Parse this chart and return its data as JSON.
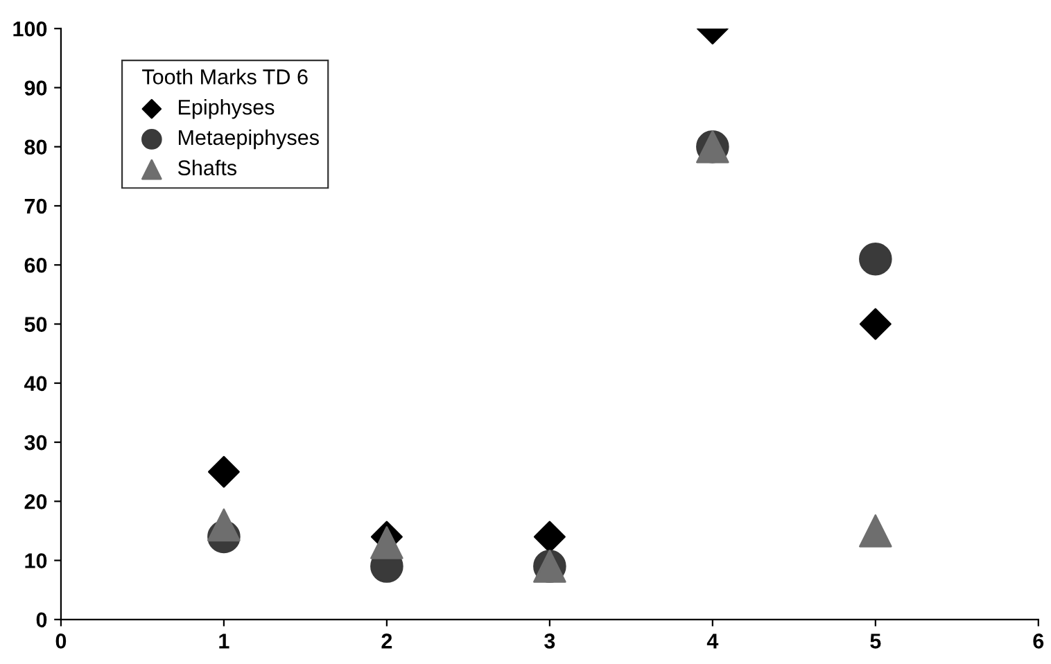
{
  "chart_data": {
    "type": "scatter",
    "legend_title": "Tooth Marks TD 6",
    "x": [
      1,
      2,
      3,
      4,
      5
    ],
    "series": [
      {
        "name": "Epiphyses",
        "color": "#000000",
        "marker": "diamond",
        "values": [
          25,
          14,
          14,
          100,
          50
        ]
      },
      {
        "name": "Metaepiphyses",
        "color": "#3a3a3a",
        "marker": "circle",
        "values": [
          14,
          9,
          9,
          80,
          61
        ]
      },
      {
        "name": "Shafts",
        "color": "#6e6e6e",
        "marker": "triangle",
        "values": [
          16,
          13,
          9,
          80,
          15
        ]
      }
    ],
    "xlim": [
      0,
      6
    ],
    "xticks": [
      0,
      1,
      2,
      3,
      4,
      5,
      6
    ],
    "ylim": [
      0,
      100
    ],
    "yticks": [
      0,
      10,
      20,
      30,
      40,
      50,
      60,
      70,
      80,
      90,
      100
    ],
    "grid": false,
    "legend": "top left"
  }
}
